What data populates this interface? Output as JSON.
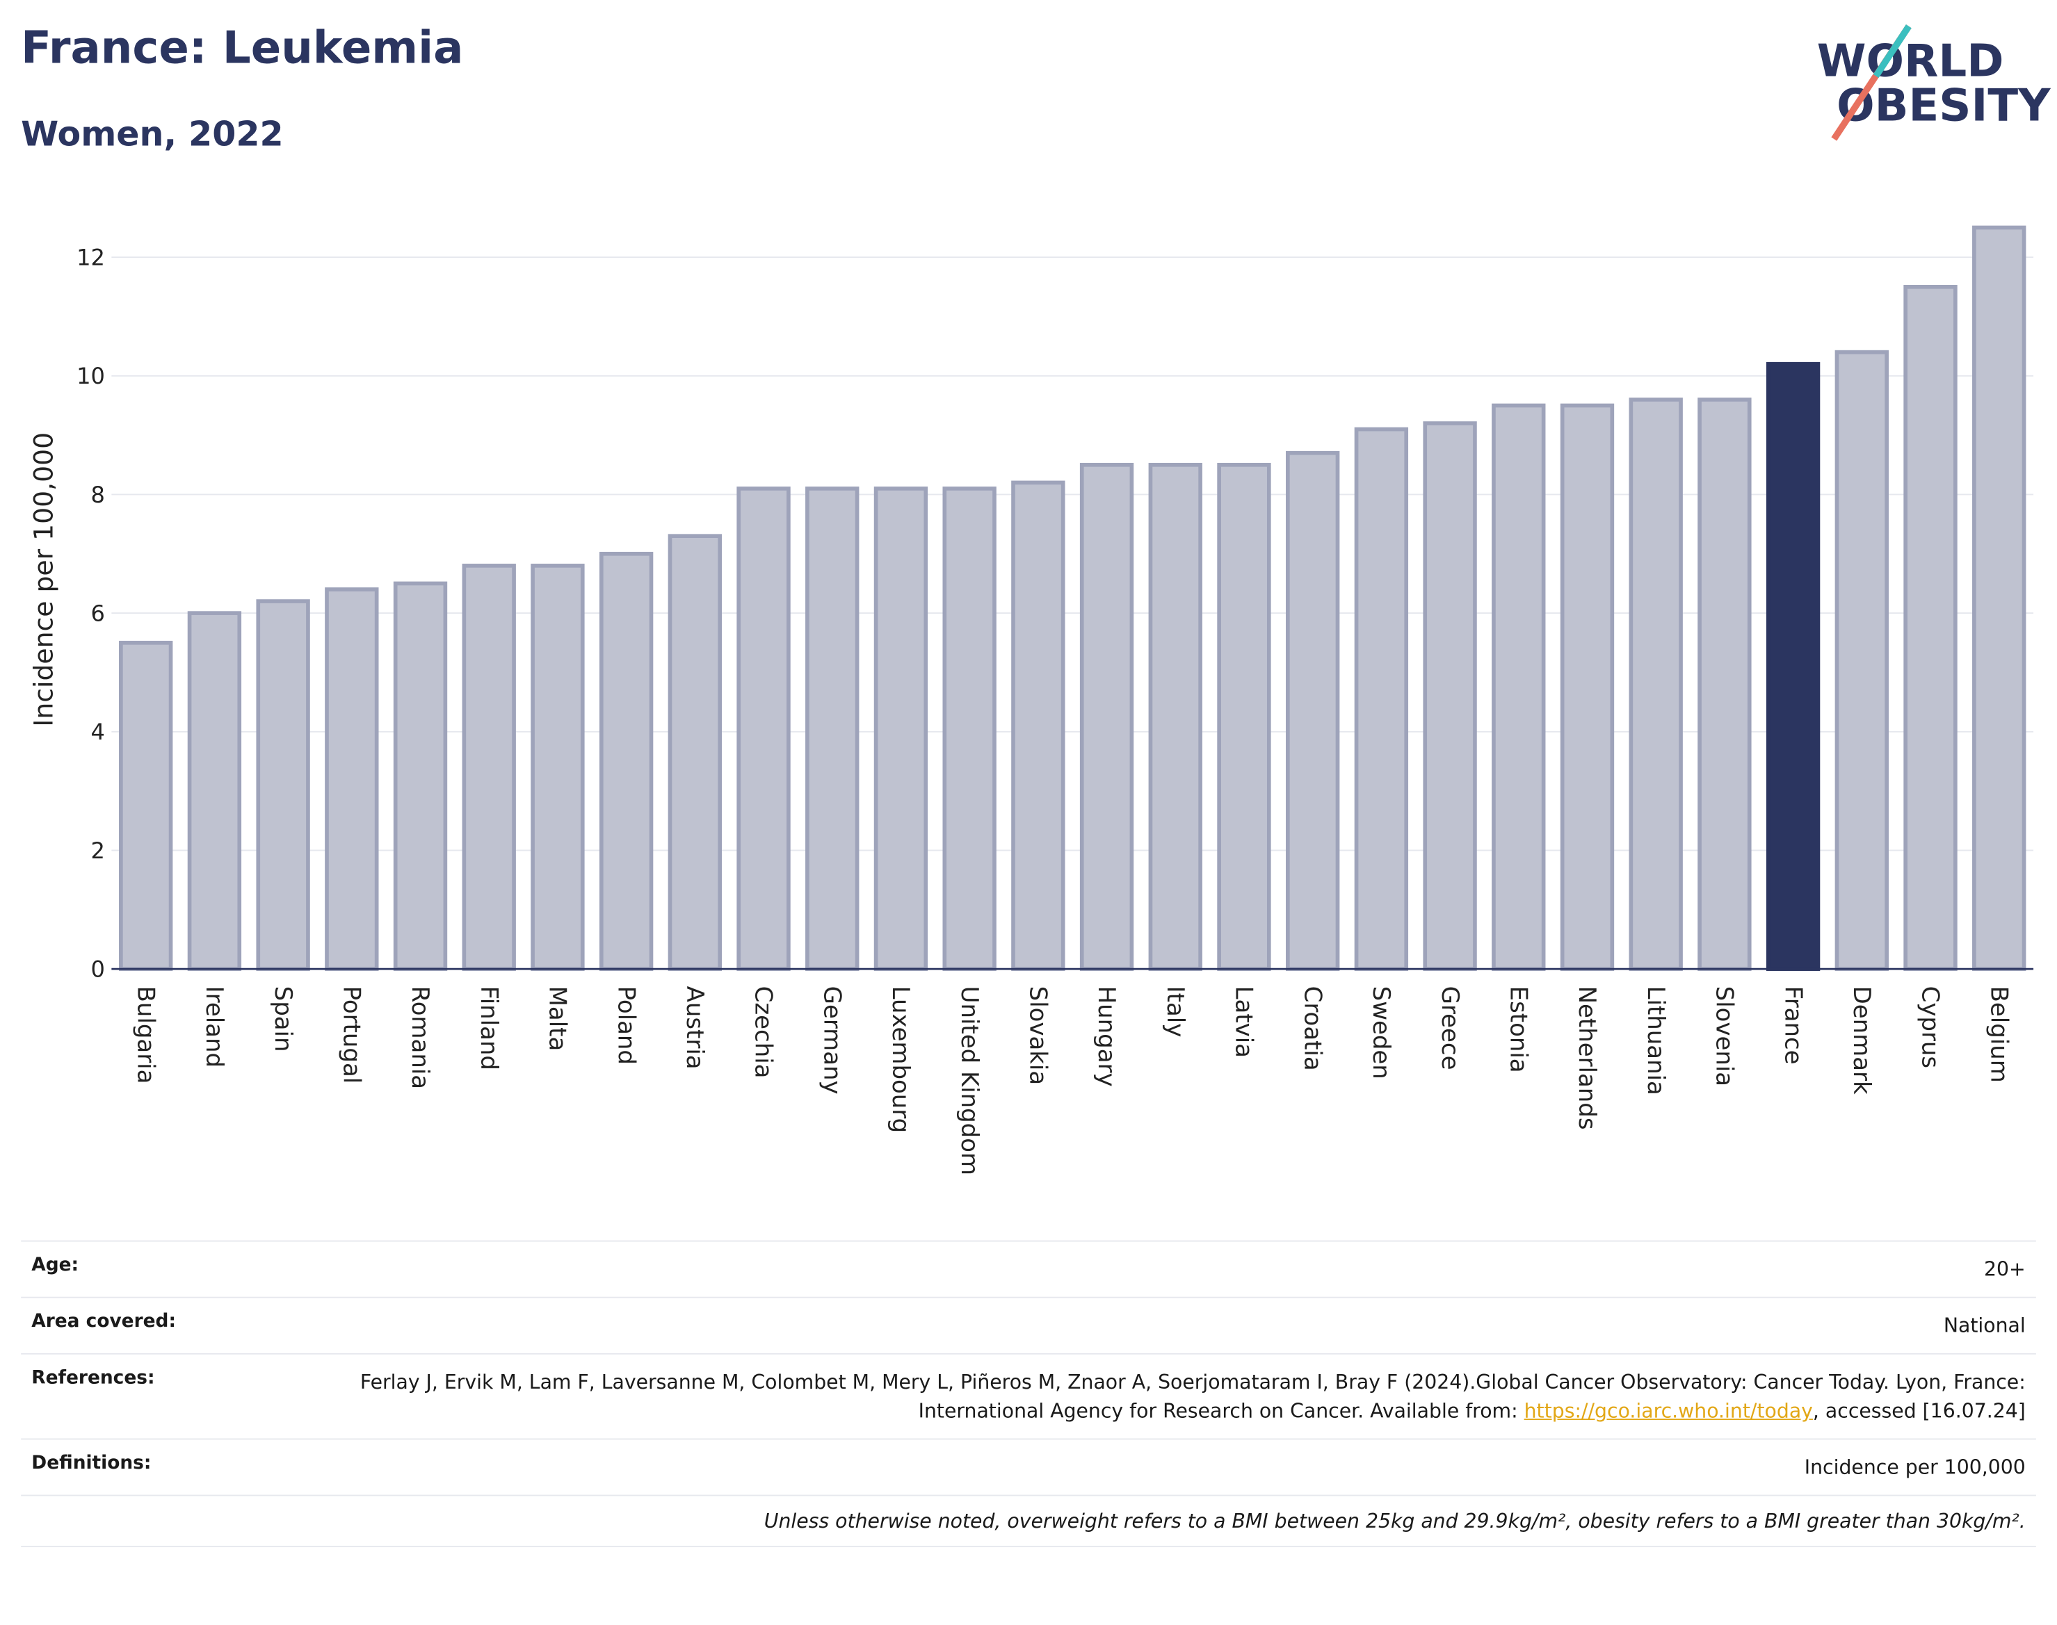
{
  "header": {
    "title": "France: Leukemia",
    "subtitle": "Women, 2022",
    "logo_line1": "WORLD",
    "logo_line2": "OBESITY"
  },
  "chart_data": {
    "type": "bar",
    "y_label": "Incidence per 100,000",
    "categories": [
      "Bulgaria",
      "Ireland",
      "Spain",
      "Portugal",
      "Romania",
      "Finland",
      "Malta",
      "Poland",
      "Austria",
      "Czechia",
      "Germany",
      "Luxembourg",
      "United Kingdom",
      "Slovakia",
      "Hungary",
      "Italy",
      "Latvia",
      "Croatia",
      "Sweden",
      "Greece",
      "Estonia",
      "Netherlands",
      "Lithuania",
      "Slovenia",
      "France",
      "Denmark",
      "Cyprus",
      "Belgium"
    ],
    "values": [
      5.5,
      6.0,
      6.2,
      6.4,
      6.5,
      6.8,
      6.8,
      7.0,
      7.3,
      8.1,
      8.1,
      8.1,
      8.1,
      8.2,
      8.5,
      8.5,
      8.5,
      8.7,
      9.1,
      9.2,
      9.5,
      9.5,
      9.6,
      9.6,
      10.2,
      10.4,
      11.5,
      12.5
    ],
    "colors": [
      "#bfc2d0",
      "#bfc2d0",
      "#bfc2d0",
      "#bfc2d0",
      "#bfc2d0",
      "#bfc2d0",
      "#bfc2d0",
      "#bfc2d0",
      "#bfc2d0",
      "#bfc2d0",
      "#bfc2d0",
      "#bfc2d0",
      "#bfc2d0",
      "#bfc2d0",
      "#bfc2d0",
      "#bfc2d0",
      "#bfc2d0",
      "#bfc2d0",
      "#bfc2d0",
      "#bfc2d0",
      "#bfc2d0",
      "#bfc2d0",
      "#bfc2d0",
      "#bfc2d0",
      "#2b3560",
      "#bfc2d0",
      "#bfc2d0",
      "#bfc2d0"
    ],
    "ylim": [
      0,
      12.8
    ],
    "yticks": [
      0,
      2,
      4,
      6,
      8,
      10,
      12
    ],
    "grid": true
  },
  "info": {
    "rows": [
      {
        "label": "Age:",
        "value": "20+"
      },
      {
        "label": "Area covered:",
        "value": "National"
      }
    ],
    "references": {
      "label": "References:",
      "text": "Ferlay J, Ervik M, Lam F, Laversanne M, Colombet M, Mery L, Piñeros M, Znaor A, Soerjomataram I, Bray F (2024).Global Cancer Observatory: Cancer Today. Lyon, France: International Agency for Research on Cancer. Available from: ",
      "link": "https://gco.iarc.who.int/today",
      "after": ", accessed [16.07.24]"
    },
    "definitions": {
      "label": "Definitions:",
      "value": "Incidence per 100,000"
    },
    "note": "Unless otherwise noted, overweight refers to a BMI between 25kg and 29.9kg/m², obesity refers to a BMI greater than 30kg/m²."
  }
}
